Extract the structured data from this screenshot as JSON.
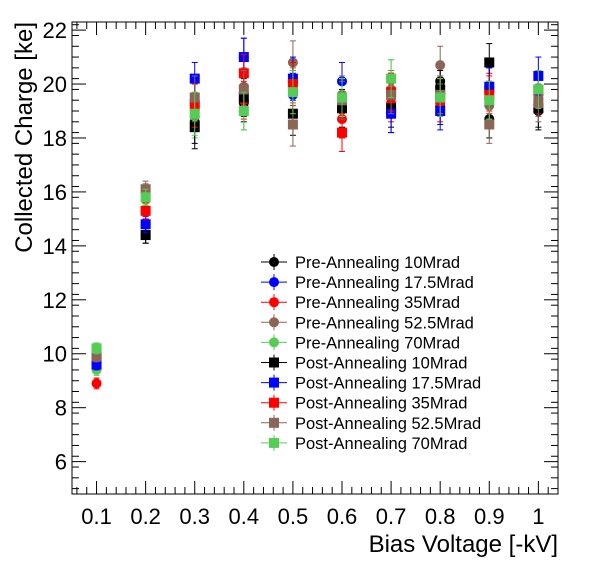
{
  "chart_data": {
    "type": "scatter",
    "title": "",
    "xlabel": "Bias Voltage [-kV]",
    "ylabel": "Collected Charge [ke]",
    "xlim": [
      0.05,
      1.04
    ],
    "ylim": [
      4.8,
      22.3
    ],
    "grid": false,
    "legend_position": "center-right",
    "x_ticks": [
      {
        "value": 0.1,
        "label": "0.1"
      },
      {
        "value": 0.2,
        "label": "0.2"
      },
      {
        "value": 0.3,
        "label": "0.3"
      },
      {
        "value": 0.4,
        "label": "0.4"
      },
      {
        "value": 0.5,
        "label": "0.5"
      },
      {
        "value": 0.6,
        "label": "0.6"
      },
      {
        "value": 0.7,
        "label": "0.7"
      },
      {
        "value": 0.8,
        "label": "0.8"
      },
      {
        "value": 0.9,
        "label": "0.9"
      },
      {
        "value": 1.0,
        "label": "1"
      }
    ],
    "y_ticks": [
      {
        "value": 6,
        "label": "6"
      },
      {
        "value": 8,
        "label": "8"
      },
      {
        "value": 10,
        "label": "10"
      },
      {
        "value": 12,
        "label": "12"
      },
      {
        "value": 14,
        "label": "14"
      },
      {
        "value": 16,
        "label": "16"
      },
      {
        "value": 18,
        "label": "18"
      },
      {
        "value": 20,
        "label": "20"
      },
      {
        "value": 22,
        "label": "22"
      }
    ],
    "x": [
      0.1,
      0.2,
      0.3,
      0.4,
      0.5,
      0.6,
      0.7,
      0.8,
      0.9,
      1.0
    ],
    "series": [
      {
        "name": "Pre-Annealing 10Mrad",
        "marker": "circle",
        "color": "#000000",
        "values": [
          9.7,
          14.4,
          18.6,
          19.3,
          19.7,
          19.5,
          19.7,
          20.1,
          18.7,
          19.0
        ],
        "errors": [
          0.2,
          0.3,
          0.8,
          0.7,
          0.8,
          0.7,
          0.7,
          0.7,
          0.7,
          0.7
        ]
      },
      {
        "name": "Pre-Annealing 17.5Mrad",
        "marker": "circle",
        "color": "#0000ff",
        "values": [
          9.6,
          14.8,
          19.3,
          21.0,
          19.6,
          20.1,
          18.9,
          19.2,
          19.9,
          19.6
        ],
        "errors": [
          0.2,
          0.3,
          0.8,
          0.7,
          0.8,
          0.7,
          0.7,
          0.7,
          0.7,
          0.7
        ]
      },
      {
        "name": "Pre-Annealing 35Mrad",
        "marker": "circle",
        "color": "#ff0000",
        "values": [
          8.9,
          15.3,
          19.2,
          19.4,
          19.8,
          18.7,
          19.3,
          19.3,
          19.7,
          19.6
        ],
        "errors": [
          0.2,
          0.3,
          0.8,
          0.7,
          0.8,
          0.7,
          0.7,
          0.7,
          0.7,
          0.7
        ]
      },
      {
        "name": "Pre-Annealing 52.5Mrad",
        "marker": "circle",
        "color": "#8b6656",
        "values": [
          10.1,
          16.0,
          19.4,
          19.9,
          20.8,
          19.6,
          19.8,
          20.7,
          19.2,
          19.5
        ],
        "errors": [
          0.2,
          0.3,
          0.8,
          0.7,
          0.8,
          0.7,
          0.7,
          0.7,
          0.7,
          0.7
        ]
      },
      {
        "name": "Pre-Annealing 70Mrad",
        "marker": "circle",
        "color": "#55cc55",
        "values": [
          9.4,
          15.7,
          18.8,
          19.0,
          19.8,
          19.5,
          20.2,
          19.6,
          19.4,
          19.8
        ],
        "errors": [
          0.2,
          0.3,
          0.8,
          0.7,
          0.8,
          0.7,
          0.7,
          0.7,
          0.7,
          0.7
        ]
      },
      {
        "name": "Post-Annealing 10Mrad",
        "marker": "square",
        "color": "#000000",
        "values": [
          9.8,
          14.4,
          18.4,
          19.5,
          18.9,
          19.1,
          19.1,
          19.8,
          20.8,
          19.1
        ],
        "errors": [
          0.2,
          0.3,
          0.8,
          0.7,
          0.8,
          0.7,
          0.7,
          0.7,
          0.7,
          0.7
        ]
      },
      {
        "name": "Post-Annealing 17.5Mrad",
        "marker": "square",
        "color": "#0000ff",
        "values": [
          9.6,
          14.8,
          20.2,
          21.0,
          20.2,
          19.4,
          18.9,
          19.0,
          19.9,
          20.3
        ],
        "errors": [
          0.2,
          0.3,
          0.6,
          0.7,
          0.8,
          0.7,
          0.7,
          0.7,
          0.7,
          0.7
        ]
      },
      {
        "name": "Post-Annealing 35Mrad",
        "marker": "square",
        "color": "#ff0000",
        "values": [
          10.0,
          15.3,
          19.2,
          20.4,
          20.0,
          18.2,
          19.7,
          19.5,
          19.6,
          19.8
        ],
        "errors": [
          0.2,
          0.3,
          0.8,
          0.7,
          0.8,
          0.7,
          0.7,
          0.7,
          0.7,
          0.7
        ]
      },
      {
        "name": "Post-Annealing 52.5Mrad",
        "marker": "square",
        "color": "#8b6656",
        "values": [
          9.9,
          16.1,
          19.5,
          19.8,
          18.5,
          19.4,
          19.6,
          19.6,
          18.5,
          19.3
        ],
        "errors": [
          0.2,
          0.3,
          0.8,
          0.7,
          0.8,
          0.7,
          0.7,
          0.7,
          0.7,
          0.7
        ]
      },
      {
        "name": "Post-Annealing 70Mrad",
        "marker": "square",
        "color": "#55cc55",
        "values": [
          10.2,
          15.8,
          18.9,
          19.0,
          19.7,
          19.5,
          20.2,
          19.5,
          19.4,
          19.8
        ],
        "errors": [
          0.2,
          0.3,
          0.8,
          0.7,
          0.8,
          0.7,
          0.7,
          0.7,
          0.7,
          0.7
        ]
      }
    ]
  }
}
